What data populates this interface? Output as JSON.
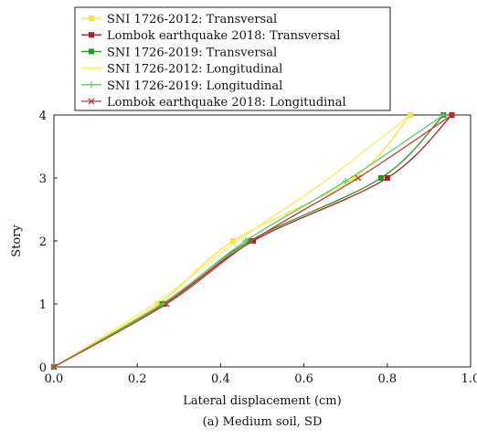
{
  "chart_data": {
    "type": "line",
    "xlabel": "Lateral displacement (cm)",
    "ylabel": "Story",
    "caption": "(a) Medium soil, SD",
    "xlim": [
      0,
      1.0
    ],
    "ylim": [
      0,
      4
    ],
    "xticks": [
      "0.0",
      "0.2",
      "0.4",
      "0.6",
      "0.8",
      "1.0"
    ],
    "yticks": [
      "0",
      "1",
      "2",
      "3",
      "4"
    ],
    "grid": false,
    "legend_position": "top-left",
    "series": [
      {
        "name": "SNI 1726-2012: Transversal",
        "color": "#f5e63a",
        "marker": "square",
        "x": [
          0,
          0.25,
          0.43,
          0.72,
          0.855
        ],
        "y": [
          0,
          1,
          2,
          3,
          4
        ]
      },
      {
        "name": "Lombok earthquake 2018: Transversal",
        "color": "#c0141c",
        "marker": "square",
        "x": [
          0,
          0.265,
          0.478,
          0.8,
          0.955
        ],
        "y": [
          0,
          1,
          2,
          3,
          4
        ]
      },
      {
        "name": "SNI 1726-2019: Transversal",
        "color": "#1f9a1f",
        "marker": "square",
        "x": [
          0,
          0.26,
          0.47,
          0.785,
          0.935
        ],
        "y": [
          0,
          1,
          2,
          3,
          4
        ]
      },
      {
        "name": "SNI 1726-2012: Longitudinal",
        "color": "#f5f25a",
        "marker": "none",
        "x": [
          0,
          0.24,
          0.44,
          0.65,
          0.855
        ],
        "y": [
          0,
          1,
          2,
          2.95,
          4
        ]
      },
      {
        "name": "SNI 1726-2019: Longitudinal",
        "color": "#5fc95f",
        "marker": "plus",
        "x": [
          0,
          0.262,
          0.46,
          0.7,
          0.935
        ],
        "y": [
          0,
          1,
          2,
          2.95,
          4
        ]
      },
      {
        "name": "Lombok earthquake 2018: Longitudinal",
        "color": "#c83636",
        "marker": "cross",
        "x": [
          0,
          0.27,
          0.475,
          0.73,
          0.955
        ],
        "y": [
          0,
          1,
          2,
          3,
          4
        ]
      }
    ]
  }
}
